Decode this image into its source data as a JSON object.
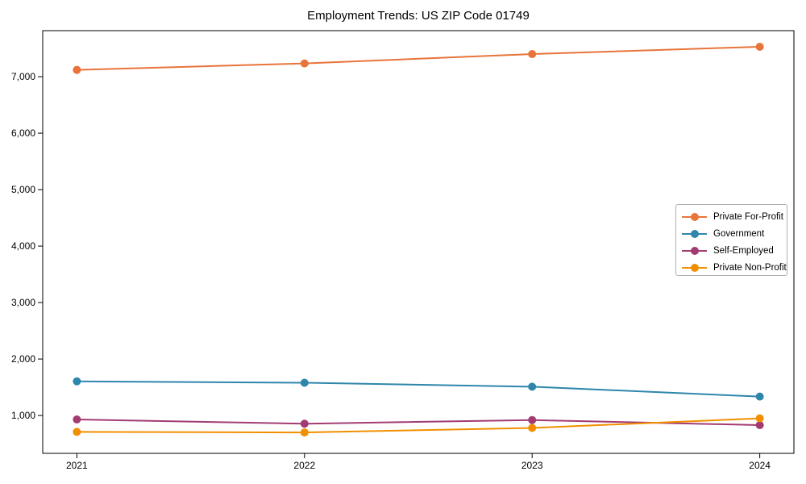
{
  "chart_data": {
    "type": "line",
    "title": "Employment Trends: US ZIP Code 01749",
    "categories": [
      "2021",
      "2022",
      "2023",
      "2024"
    ],
    "series": [
      {
        "name": "Private For-Profit",
        "color": "#E8743B",
        "values": [
          7120,
          7235,
          7400,
          7530
        ]
      },
      {
        "name": "Government",
        "color": "#2E86AB",
        "values": [
          1605,
          1580,
          1510,
          1335
        ]
      },
      {
        "name": "Self-Employed",
        "color": "#A23B72",
        "values": [
          930,
          855,
          920,
          830
        ]
      },
      {
        "name": "Private Non-Profit",
        "color": "#F18F01",
        "values": [
          710,
          700,
          780,
          950
        ]
      }
    ],
    "xlabel": "",
    "ylabel": "",
    "yticks": [
      1000,
      2000,
      3000,
      4000,
      5000,
      6000,
      7000
    ],
    "ytick_labels": [
      "1,000",
      "2,000",
      "3,000",
      "4,000",
      "5,000",
      "6,000",
      "7,000"
    ],
    "ylim": [
      330,
      7815
    ],
    "grid": false,
    "legend_position": "center-right",
    "marker": "circle"
  }
}
